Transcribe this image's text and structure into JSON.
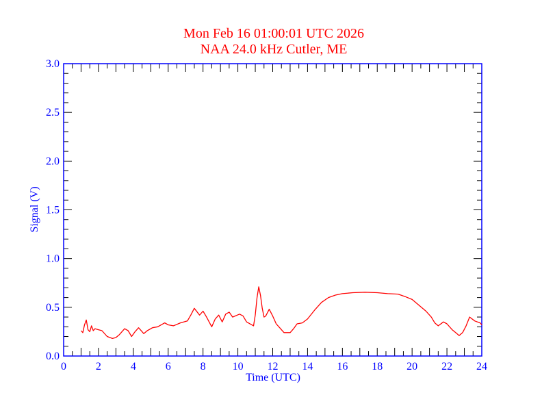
{
  "chart_data": {
    "type": "line",
    "title": "Mon Feb 16 01:00:01 UTC 2026",
    "subtitle": "NAA 24.0 kHz Cutler, ME",
    "xlabel": "Time (UTC)",
    "ylabel": "Signal (V)",
    "xlim": [
      0,
      24
    ],
    "ylim": [
      0,
      3.0
    ],
    "xticks": [
      "0",
      "2",
      "4",
      "6",
      "8",
      "10",
      "12",
      "14",
      "16",
      "18",
      "20",
      "22",
      "24"
    ],
    "yticks": [
      "0.0",
      "0.5",
      "1.0",
      "1.5",
      "2.0",
      "2.5",
      "3.0"
    ],
    "grid": false,
    "colors": {
      "title": "#ff0000",
      "axis": "#0000ff",
      "series": "#ff0000",
      "ticks": "#000000"
    },
    "series": [
      {
        "x": [
          1.0,
          1.1,
          1.2,
          1.3,
          1.4,
          1.5,
          1.6,
          1.7,
          1.8,
          2.0,
          2.2,
          2.5,
          2.8,
          3.0,
          3.2,
          3.5,
          3.7,
          3.9,
          4.1,
          4.3,
          4.6,
          4.8,
          5.1,
          5.4,
          5.8,
          6.0,
          6.3,
          6.7,
          7.1,
          7.3,
          7.5,
          7.8,
          8.0,
          8.2,
          8.5,
          8.7,
          8.9,
          9.1,
          9.3,
          9.5,
          9.7,
          10.1,
          10.3,
          10.5,
          10.9,
          11.0,
          11.1,
          11.2,
          11.3,
          11.4,
          11.5,
          11.6,
          11.8,
          12.0,
          12.2,
          12.4,
          12.65,
          13.0,
          13.2,
          13.4,
          13.7,
          14.0,
          14.4,
          14.8,
          15.2,
          15.6,
          16.0,
          16.6,
          17.3,
          18.0,
          18.6,
          19.2,
          19.6,
          20.0,
          20.4,
          20.8,
          21.1,
          21.3,
          21.5,
          21.8,
          22.0,
          22.3,
          22.5,
          22.7,
          22.9,
          23.1,
          23.3,
          23.6,
          23.9,
          24.0
        ],
        "y": [
          0.26,
          0.24,
          0.32,
          0.37,
          0.27,
          0.25,
          0.31,
          0.26,
          0.28,
          0.27,
          0.26,
          0.2,
          0.18,
          0.19,
          0.22,
          0.28,
          0.26,
          0.2,
          0.25,
          0.29,
          0.23,
          0.26,
          0.29,
          0.3,
          0.34,
          0.32,
          0.31,
          0.34,
          0.36,
          0.42,
          0.49,
          0.42,
          0.46,
          0.4,
          0.3,
          0.38,
          0.42,
          0.35,
          0.43,
          0.45,
          0.4,
          0.43,
          0.41,
          0.35,
          0.31,
          0.42,
          0.6,
          0.71,
          0.62,
          0.49,
          0.4,
          0.41,
          0.48,
          0.41,
          0.33,
          0.29,
          0.24,
          0.24,
          0.28,
          0.33,
          0.34,
          0.38,
          0.47,
          0.55,
          0.6,
          0.625,
          0.64,
          0.65,
          0.655,
          0.65,
          0.64,
          0.635,
          0.61,
          0.58,
          0.52,
          0.46,
          0.4,
          0.34,
          0.31,
          0.35,
          0.33,
          0.27,
          0.24,
          0.21,
          0.24,
          0.31,
          0.4,
          0.36,
          0.34,
          0.32
        ]
      }
    ]
  }
}
